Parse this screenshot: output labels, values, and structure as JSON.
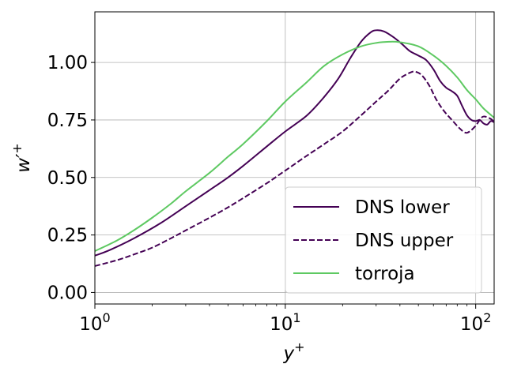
{
  "chart_data": {
    "type": "line",
    "xscale": "log",
    "xlim": [
      1,
      125
    ],
    "ylim": [
      -0.05,
      1.22
    ],
    "grid": true,
    "xlabel_base": "y",
    "xlabel_sup": "+",
    "ylabel_base": "w′",
    "ylabel_sup": "+",
    "x_ticks": [
      {
        "value": 1,
        "base": "10",
        "exp": "0"
      },
      {
        "value": 10,
        "base": "10",
        "exp": "1"
      },
      {
        "value": 100,
        "base": "10",
        "exp": "2"
      }
    ],
    "y_ticks": [
      {
        "value": 0.0,
        "label": "0.00"
      },
      {
        "value": 0.25,
        "label": "0.25"
      },
      {
        "value": 0.5,
        "label": "0.50"
      },
      {
        "value": 0.75,
        "label": "0.75"
      },
      {
        "value": 1.0,
        "label": "1.00"
      }
    ],
    "legend_position": "lower-right",
    "series": [
      {
        "name": "DNS lower",
        "color": "#440154",
        "dash": "solid",
        "points": [
          [
            1.0,
            0.16
          ],
          [
            1.2,
            0.185
          ],
          [
            1.6,
            0.235
          ],
          [
            2.2,
            0.3
          ],
          [
            3.0,
            0.375
          ],
          [
            4.0,
            0.445
          ],
          [
            5.0,
            0.5
          ],
          [
            6.0,
            0.55
          ],
          [
            8.0,
            0.635
          ],
          [
            10.0,
            0.7
          ],
          [
            13.0,
            0.77
          ],
          [
            16.0,
            0.85
          ],
          [
            19.0,
            0.93
          ],
          [
            22.0,
            1.02
          ],
          [
            25.0,
            1.09
          ],
          [
            28.0,
            1.13
          ],
          [
            30.0,
            1.14
          ],
          [
            33.0,
            1.135
          ],
          [
            37.0,
            1.11
          ],
          [
            41.0,
            1.08
          ],
          [
            45.0,
            1.05
          ],
          [
            50.0,
            1.03
          ],
          [
            55.0,
            1.01
          ],
          [
            60.0,
            0.97
          ],
          [
            65.0,
            0.92
          ],
          [
            70.0,
            0.89
          ],
          [
            75.0,
            0.875
          ],
          [
            80.0,
            0.855
          ],
          [
            85.0,
            0.81
          ],
          [
            90.0,
            0.77
          ],
          [
            95.0,
            0.75
          ],
          [
            100.0,
            0.745
          ],
          [
            105.0,
            0.75
          ],
          [
            110.0,
            0.735
          ],
          [
            115.0,
            0.73
          ],
          [
            120.0,
            0.745
          ],
          [
            125.0,
            0.74
          ]
        ]
      },
      {
        "name": "DNS upper",
        "color": "#440154",
        "dash": "dashed",
        "points": [
          [
            1.0,
            0.115
          ],
          [
            1.3,
            0.14
          ],
          [
            1.6,
            0.165
          ],
          [
            2.0,
            0.195
          ],
          [
            2.5,
            0.235
          ],
          [
            3.0,
            0.27
          ],
          [
            4.0,
            0.325
          ],
          [
            5.0,
            0.37
          ],
          [
            6.0,
            0.41
          ],
          [
            8.0,
            0.475
          ],
          [
            10.0,
            0.53
          ],
          [
            13.0,
            0.595
          ],
          [
            16.0,
            0.645
          ],
          [
            20.0,
            0.7
          ],
          [
            25.0,
            0.77
          ],
          [
            30.0,
            0.83
          ],
          [
            35.0,
            0.88
          ],
          [
            40.0,
            0.93
          ],
          [
            45.0,
            0.955
          ],
          [
            48.0,
            0.96
          ],
          [
            52.0,
            0.945
          ],
          [
            57.0,
            0.9
          ],
          [
            62.0,
            0.84
          ],
          [
            68.0,
            0.79
          ],
          [
            75.0,
            0.75
          ],
          [
            82.0,
            0.715
          ],
          [
            88.0,
            0.695
          ],
          [
            93.0,
            0.7
          ],
          [
            100.0,
            0.725
          ],
          [
            105.0,
            0.75
          ],
          [
            110.0,
            0.765
          ],
          [
            120.0,
            0.755
          ],
          [
            125.0,
            0.74
          ]
        ]
      },
      {
        "name": "torroja",
        "color": "#5ec962",
        "dash": "solid",
        "points": [
          [
            1.0,
            0.18
          ],
          [
            1.3,
            0.225
          ],
          [
            1.6,
            0.27
          ],
          [
            2.0,
            0.325
          ],
          [
            2.5,
            0.385
          ],
          [
            3.0,
            0.44
          ],
          [
            4.0,
            0.52
          ],
          [
            5.0,
            0.59
          ],
          [
            6.0,
            0.645
          ],
          [
            8.0,
            0.745
          ],
          [
            10.0,
            0.83
          ],
          [
            13.0,
            0.915
          ],
          [
            16.0,
            0.985
          ],
          [
            20.0,
            1.035
          ],
          [
            25.0,
            1.07
          ],
          [
            30.0,
            1.085
          ],
          [
            35.0,
            1.09
          ],
          [
            40.0,
            1.088
          ],
          [
            50.0,
            1.07
          ],
          [
            60.0,
            1.03
          ],
          [
            70.0,
            0.985
          ],
          [
            80.0,
            0.935
          ],
          [
            90.0,
            0.88
          ],
          [
            100.0,
            0.84
          ],
          [
            110.0,
            0.8
          ],
          [
            125.0,
            0.76
          ]
        ]
      }
    ]
  }
}
